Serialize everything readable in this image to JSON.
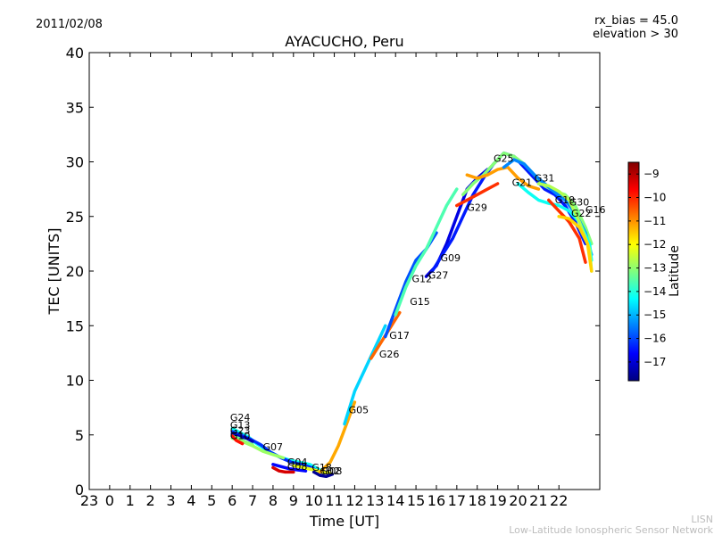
{
  "header": {
    "date": "2011/02/08",
    "rx_bias": "rx_bias = 45.0",
    "elevation": "elevation > 30"
  },
  "footer": {
    "org": "LISN",
    "org_full": "Low-Latitude Ionospheric Sensor Network"
  },
  "colors": {
    "palette_jet": [
      "#00007f",
      "#0000ff",
      "#007fff",
      "#00ffff",
      "#7fff7f",
      "#ffff00",
      "#ff7f00",
      "#ff0000",
      "#7f0000"
    ]
  },
  "chart_data": {
    "type": "line",
    "title": "AYACUCHO, Peru",
    "xlabel": "Time [UT]",
    "ylabel": "TEC [UNITS]",
    "xlim": [
      -1,
      24
    ],
    "ylim": [
      0,
      40
    ],
    "x_tick_values": [
      -1,
      0,
      1,
      2,
      3,
      4,
      5,
      6,
      7,
      8,
      9,
      10,
      11,
      12,
      13,
      14,
      15,
      16,
      17,
      18,
      19,
      20,
      21,
      22
    ],
    "x_tick_labels": [
      "23",
      "0",
      "1",
      "2",
      "3",
      "4",
      "5",
      "6",
      "7",
      "8",
      "9",
      "10",
      "11",
      "12",
      "13",
      "14",
      "15",
      "16",
      "17",
      "18",
      "19",
      "20",
      "21",
      "22"
    ],
    "y_ticks": [
      0,
      5,
      10,
      15,
      20,
      25,
      30,
      35,
      40
    ],
    "colorbar": {
      "label": "Latitude",
      "range": [
        -17.8,
        -8.5
      ],
      "ticks": [
        -9,
        -10,
        -11,
        -12,
        -13,
        -14,
        -15,
        -16,
        -17
      ]
    },
    "series": [
      {
        "name": "G24",
        "lat": -14.2,
        "x": [
          6.0,
          6.3,
          6.8,
          7.2,
          7.8,
          8.3,
          8.8,
          9.3,
          9.8,
          10.3
        ],
        "y": [
          5.6,
          5.3,
          4.8,
          4.2,
          3.5,
          3.0,
          2.7,
          2.5,
          2.3,
          1.8
        ]
      },
      {
        "name": "G13",
        "lat": -16.2,
        "x": [
          6.0,
          6.4,
          6.9,
          7.4,
          7.9,
          8.4,
          8.9,
          9.4,
          9.9,
          10.3
        ],
        "y": [
          5.3,
          5.0,
          4.6,
          4.1,
          3.4,
          2.9,
          2.5,
          2.3,
          2.0,
          1.5
        ]
      },
      {
        "name": "G23",
        "lat": -17.3,
        "x": [
          6.0,
          6.3,
          6.7,
          7.0
        ],
        "y": [
          5.1,
          4.9,
          4.7,
          4.4
        ]
      },
      {
        "name": "G10",
        "lat": -13.3,
        "x": [
          6.0,
          6.3,
          6.6,
          7.0
        ],
        "y": [
          4.9,
          4.7,
          4.4,
          4.1
        ]
      },
      {
        "name": "G07",
        "lat": -12.9,
        "x": [
          6.0,
          6.5,
          7.0,
          7.5,
          8.0,
          8.5
        ],
        "y": [
          4.7,
          4.4,
          4.0,
          3.5,
          3.2,
          2.9
        ]
      },
      {
        "name": "G08",
        "lat": -9.8,
        "x": [
          6.0,
          6.2,
          6.5
        ],
        "y": [
          4.9,
          4.5,
          4.2
        ]
      },
      {
        "name": "G04",
        "lat": -16.6,
        "x": [
          8.0,
          8.4,
          8.8,
          9.2,
          9.6
        ],
        "y": [
          2.3,
          2.1,
          1.9,
          1.8,
          1.7
        ]
      },
      {
        "name": "G08b",
        "lat": -9.3,
        "x": [
          8.0,
          8.3,
          8.6,
          9.0
        ],
        "y": [
          2.0,
          1.7,
          1.6,
          1.6
        ]
      },
      {
        "name": "G18",
        "lat": -12.2,
        "x": [
          9.0,
          9.5,
          10.0,
          10.4,
          10.8
        ],
        "y": [
          2.2,
          2.0,
          1.8,
          1.6,
          1.5
        ]
      },
      {
        "name": "G02",
        "lat": -17.6,
        "x": [
          10.0,
          10.3,
          10.6,
          10.9
        ],
        "y": [
          1.6,
          1.3,
          1.2,
          1.4
        ]
      },
      {
        "name": "G05",
        "lat": -11.2,
        "x": [
          10.3,
          10.8,
          11.2,
          11.6,
          12.0
        ],
        "y": [
          1.6,
          2.5,
          4.0,
          6.0,
          8.0
        ]
      },
      {
        "name": "G26",
        "lat": -14.7,
        "x": [
          11.5,
          12.0,
          12.5,
          13.0,
          13.5
        ],
        "y": [
          6.0,
          9.0,
          11.0,
          13.0,
          15.0
        ]
      },
      {
        "name": "G17",
        "lat": -10.6,
        "x": [
          12.8,
          13.3,
          13.8,
          14.2
        ],
        "y": [
          12.0,
          13.5,
          15.0,
          16.2
        ]
      },
      {
        "name": "G15",
        "lat": -15.9,
        "x": [
          13.5,
          14.0,
          14.5,
          15.0,
          15.5,
          16.0
        ],
        "y": [
          14.0,
          16.5,
          19.0,
          21.0,
          22.0,
          23.5
        ]
      },
      {
        "name": "G12",
        "lat": -13.6,
        "x": [
          14.0,
          14.5,
          15.0,
          15.5,
          16.0,
          16.5,
          17.0
        ],
        "y": [
          16.0,
          18.5,
          20.5,
          22.0,
          24.0,
          26.0,
          27.5
        ]
      },
      {
        "name": "G27",
        "lat": -16.9,
        "x": [
          15.5,
          16.0,
          16.5,
          17.0,
          17.5,
          18.0,
          18.5
        ],
        "y": [
          19.5,
          20.5,
          22.5,
          25.0,
          27.5,
          28.5,
          29.3
        ]
      },
      {
        "name": "G09",
        "lat": -16.4,
        "x": [
          15.8,
          16.3,
          16.8,
          17.3,
          17.8,
          18.3,
          18.8,
          19.3,
          19.8,
          20.3,
          20.8,
          21.3,
          21.8,
          22.3,
          22.8,
          23.3
        ],
        "y": [
          20.0,
          21.5,
          23.0,
          25.0,
          27.0,
          28.5,
          29.8,
          30.8,
          30.5,
          29.5,
          28.5,
          27.5,
          27.0,
          26.0,
          24.5,
          22.5
        ]
      },
      {
        "name": "G29",
        "lat": -10.1,
        "x": [
          17.0,
          17.5,
          18.0,
          18.5,
          19.0
        ],
        "y": [
          26.0,
          26.5,
          27.0,
          27.5,
          28.0
        ]
      },
      {
        "name": "G25",
        "lat": -13.1,
        "x": [
          17.3,
          17.8,
          18.3,
          18.8,
          19.3,
          19.8,
          20.3,
          20.8,
          21.3,
          21.8,
          22.3,
          22.8,
          23.3,
          23.6
        ],
        "y": [
          27.0,
          28.0,
          28.8,
          29.8,
          30.8,
          30.5,
          29.8,
          28.8,
          27.8,
          27.3,
          27.0,
          26.0,
          24.0,
          22.5
        ]
      },
      {
        "name": "G21",
        "lat": -11.1,
        "x": [
          17.5,
          18.0,
          18.5,
          19.0,
          19.5,
          20.0,
          20.5,
          21.0
        ],
        "y": [
          28.8,
          28.5,
          28.8,
          29.3,
          29.5,
          28.5,
          27.8,
          27.5
        ]
      },
      {
        "name": "G31",
        "lat": -15.4,
        "x": [
          19.3,
          19.8,
          20.3,
          20.8,
          21.3,
          21.8,
          22.3,
          22.8,
          23.3,
          23.6
        ],
        "y": [
          29.5,
          30.2,
          29.8,
          28.8,
          28.0,
          27.2,
          26.5,
          25.3,
          23.5,
          21.5
        ]
      },
      {
        "name": "G19",
        "lat": -14.2,
        "x": [
          20.0,
          20.5,
          21.0,
          21.5,
          22.0,
          22.5,
          23.0,
          23.5,
          23.6
        ],
        "y": [
          28.0,
          27.2,
          26.5,
          26.2,
          26.0,
          25.5,
          24.5,
          22.5,
          21.0
        ]
      },
      {
        "name": "G30",
        "lat": -12.7,
        "x": [
          21.0,
          21.5,
          22.0,
          22.5,
          23.0,
          23.5,
          23.6
        ],
        "y": [
          28.0,
          27.8,
          27.3,
          26.5,
          24.5,
          22.0,
          20.0
        ]
      },
      {
        "name": "G22",
        "lat": -10.1,
        "x": [
          21.5,
          22.0,
          22.5,
          23.0,
          23.3
        ],
        "y": [
          26.5,
          25.5,
          24.5,
          23.0,
          20.8
        ]
      },
      {
        "name": "G16",
        "lat": -11.6,
        "x": [
          22.0,
          22.5,
          23.0,
          23.4,
          23.6
        ],
        "y": [
          25.0,
          24.8,
          24.0,
          22.5,
          20.0
        ]
      }
    ],
    "annotations": [
      {
        "text": "G24",
        "x": 5.9,
        "y": 6.3
      },
      {
        "text": "G13",
        "x": 5.9,
        "y": 5.6
      },
      {
        "text": "G23",
        "x": 5.9,
        "y": 5.1
      },
      {
        "text": "G10",
        "x": 5.9,
        "y": 4.6
      },
      {
        "text": "G07",
        "x": 7.5,
        "y": 3.6
      },
      {
        "text": "G04",
        "x": 8.7,
        "y": 2.2
      },
      {
        "text": "G08",
        "x": 8.7,
        "y": 1.8
      },
      {
        "text": "G18",
        "x": 9.9,
        "y": 1.7
      },
      {
        "text": "G02",
        "x": 10.3,
        "y": 1.4
      },
      {
        "text": "G08",
        "x": 10.4,
        "y": 1.4
      },
      {
        "text": "G05",
        "x": 11.7,
        "y": 7.0
      },
      {
        "text": "G26",
        "x": 13.2,
        "y": 12.1
      },
      {
        "text": "G17",
        "x": 13.7,
        "y": 13.8
      },
      {
        "text": "G15",
        "x": 14.7,
        "y": 16.9
      },
      {
        "text": "G12",
        "x": 14.8,
        "y": 19.0
      },
      {
        "text": "G27",
        "x": 15.6,
        "y": 19.3
      },
      {
        "text": "G09",
        "x": 16.2,
        "y": 20.9
      },
      {
        "text": "G29",
        "x": 17.5,
        "y": 25.5
      },
      {
        "text": "G25",
        "x": 18.8,
        "y": 30.0
      },
      {
        "text": "G21",
        "x": 19.7,
        "y": 27.8
      },
      {
        "text": "G31",
        "x": 20.8,
        "y": 28.2
      },
      {
        "text": "G19",
        "x": 21.8,
        "y": 26.2
      },
      {
        "text": "G30",
        "x": 22.5,
        "y": 26.0
      },
      {
        "text": "G22",
        "x": 22.6,
        "y": 25.0
      },
      {
        "text": "G16",
        "x": 23.3,
        "y": 25.3
      }
    ]
  }
}
